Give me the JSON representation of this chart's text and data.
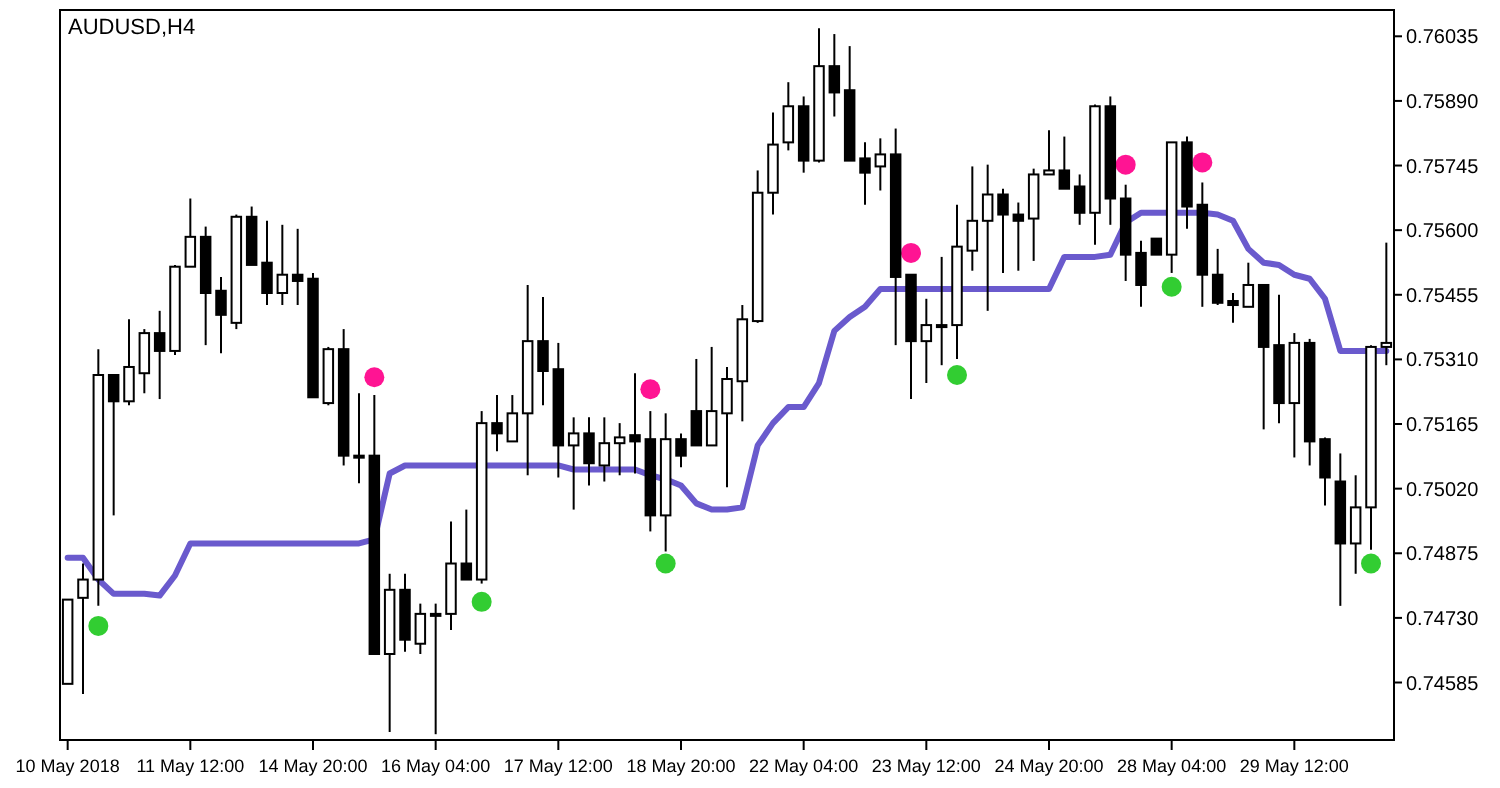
{
  "chart_data": {
    "type": "candlestick",
    "title": "AUDUSD,H4",
    "categories": [
      "10 May 2018",
      null,
      null,
      null,
      null,
      null,
      null,
      null,
      "11 May 12:00",
      null,
      null,
      null,
      null,
      null,
      null,
      null,
      "14 May 20:00",
      null,
      null,
      null,
      null,
      null,
      null,
      null,
      "16 May 04:00",
      null,
      null,
      null,
      null,
      null,
      null,
      null,
      "17 May 12:00",
      null,
      null,
      null,
      null,
      null,
      null,
      null,
      "18 May 20:00",
      null,
      null,
      null,
      null,
      null,
      null,
      null,
      "22 May 04:00",
      null,
      null,
      null,
      null,
      null,
      null,
      null,
      "23 May 12:00",
      null,
      null,
      null,
      null,
      null,
      null,
      null,
      "24 May 20:00",
      null,
      null,
      null,
      null,
      null,
      null,
      null,
      "28 May 04:00",
      null,
      null,
      null,
      null,
      null,
      null,
      null,
      "29 May 12:00",
      null,
      null,
      null,
      null,
      null,
      null
    ],
    "ohlc": [
      [
        0.74582,
        0.74771,
        0.74582,
        0.74771
      ],
      [
        0.74775,
        0.74852,
        0.74559,
        0.74816
      ],
      [
        0.74816,
        0.75333,
        0.74757,
        0.75275
      ],
      [
        0.75275,
        0.75275,
        0.7496,
        0.75216
      ],
      [
        0.75216,
        0.754,
        0.75207,
        0.75293
      ],
      [
        0.75279,
        0.75378,
        0.75234,
        0.75369
      ],
      [
        0.75369,
        0.75419,
        0.75221,
        0.75329
      ],
      [
        0.75329,
        0.75522,
        0.7532,
        0.75518
      ],
      [
        0.75518,
        0.75671,
        0.75518,
        0.75585
      ],
      [
        0.75585,
        0.75608,
        0.75342,
        0.75459
      ],
      [
        0.75464,
        0.75495,
        0.75324,
        0.7541
      ],
      [
        0.75392,
        0.75635,
        0.75378,
        0.7563
      ],
      [
        0.7563,
        0.75653,
        0.75522,
        0.75522
      ],
      [
        0.75527,
        0.75621,
        0.75432,
        0.75459
      ],
      [
        0.75459,
        0.75612,
        0.75432,
        0.755
      ],
      [
        0.755,
        0.75603,
        0.75432,
        0.75486
      ],
      [
        0.75491,
        0.75504,
        0.75225,
        0.75225
      ],
      [
        0.75212,
        0.75338,
        0.75207,
        0.75333
      ],
      [
        0.75333,
        0.75378,
        0.75072,
        0.75094
      ],
      [
        0.75094,
        0.75234,
        0.75032,
        0.75094
      ],
      [
        0.75094,
        0.7523,
        0.74649,
        0.74649
      ],
      [
        0.74649,
        0.74829,
        0.74474,
        0.74793
      ],
      [
        0.74793,
        0.74829,
        0.74654,
        0.74681
      ],
      [
        0.74672,
        0.74762,
        0.74649,
        0.74739
      ],
      [
        0.74739,
        0.74762,
        0.74469,
        0.74739
      ],
      [
        0.74739,
        0.74946,
        0.74703,
        0.74852
      ],
      [
        0.74852,
        0.74973,
        0.74816,
        0.74816
      ],
      [
        0.74816,
        0.75194,
        0.74807,
        0.75167
      ],
      [
        0.75167,
        0.7523,
        0.75104,
        0.75144
      ],
      [
        0.75126,
        0.7523,
        0.75126,
        0.75189
      ],
      [
        0.75189,
        0.75477,
        0.7505,
        0.75351
      ],
      [
        0.75351,
        0.7545,
        0.75207,
        0.75284
      ],
      [
        0.75288,
        0.75347,
        0.75045,
        0.75117
      ],
      [
        0.75117,
        0.7518,
        0.74973,
        0.75144
      ],
      [
        0.75144,
        0.7518,
        0.75027,
        0.75077
      ],
      [
        0.75072,
        0.7518,
        0.75036,
        0.75122
      ],
      [
        0.75122,
        0.75167,
        0.7505,
        0.75135
      ],
      [
        0.7514,
        0.75279,
        0.75054,
        0.75126
      ],
      [
        0.75131,
        0.75194,
        0.74924,
        0.7496
      ],
      [
        0.7496,
        0.75189,
        0.74879,
        0.75131
      ],
      [
        0.75131,
        0.75144,
        0.75068,
        0.75094
      ],
      [
        0.75194,
        0.75311,
        0.75117,
        0.75117
      ],
      [
        0.75117,
        0.75338,
        0.75117,
        0.75194
      ],
      [
        0.75189,
        0.75293,
        0.75023,
        0.75266
      ],
      [
        0.75261,
        0.75432,
        0.75171,
        0.754
      ],
      [
        0.75396,
        0.75734,
        0.75392,
        0.75684
      ],
      [
        0.75684,
        0.75864,
        0.75635,
        0.75792
      ],
      [
        0.75797,
        0.75932,
        0.75779,
        0.75878
      ],
      [
        0.75878,
        0.759,
        0.75729,
        0.75756
      ],
      [
        0.75756,
        0.76053,
        0.75752,
        0.75968
      ],
      [
        0.75968,
        0.7604,
        0.75855,
        0.75909
      ],
      [
        0.75914,
        0.76013,
        0.75756,
        0.75756
      ],
      [
        0.75761,
        0.75797,
        0.75657,
        0.75729
      ],
      [
        0.75743,
        0.75806,
        0.75689,
        0.7577
      ],
      [
        0.7577,
        0.75828,
        0.75342,
        0.75495
      ],
      [
        0.755,
        0.755,
        0.75221,
        0.75351
      ],
      [
        0.75351,
        0.75446,
        0.75257,
        0.75387
      ],
      [
        0.75387,
        0.7554,
        0.75297,
        0.75387
      ],
      [
        0.75387,
        0.75657,
        0.75311,
        0.75563
      ],
      [
        0.75554,
        0.75743,
        0.75509,
        0.75621
      ],
      [
        0.75621,
        0.75747,
        0.75419,
        0.7568
      ],
      [
        0.7568,
        0.75693,
        0.75504,
        0.75635
      ],
      [
        0.75635,
        0.75662,
        0.75509,
        0.75621
      ],
      [
        0.75626,
        0.75738,
        0.75531,
        0.75725
      ],
      [
        0.75725,
        0.75824,
        0.75725,
        0.75734
      ],
      [
        0.75734,
        0.7581,
        0.75693,
        0.75693
      ],
      [
        0.75698,
        0.75725,
        0.75612,
        0.75639
      ],
      [
        0.75639,
        0.75882,
        0.75567,
        0.75878
      ],
      [
        0.75878,
        0.759,
        0.75612,
        0.75671
      ],
      [
        0.75671,
        0.75702,
        0.75486,
        0.75545
      ],
      [
        0.75549,
        0.75576,
        0.75428,
        0.75477
      ],
      [
        0.75581,
        0.75581,
        0.75545,
        0.75545
      ],
      [
        0.75545,
        0.75797,
        0.75504,
        0.75797
      ],
      [
        0.75797,
        0.7581,
        0.75603,
        0.75653
      ],
      [
        0.75657,
        0.75707,
        0.75428,
        0.755
      ],
      [
        0.755,
        0.75558,
        0.75432,
        0.75437
      ],
      [
        0.75441,
        0.75459,
        0.75392,
        0.75432
      ],
      [
        0.75428,
        0.75527,
        0.75428,
        0.75477
      ],
      [
        0.75477,
        0.75477,
        0.75153,
        0.75338
      ],
      [
        0.75342,
        0.75455,
        0.75167,
        0.75212
      ],
      [
        0.75212,
        0.75369,
        0.7509,
        0.75347
      ],
      [
        0.75347,
        0.75356,
        0.75072,
        0.75126
      ],
      [
        0.75131,
        0.75135,
        0.74982,
        0.75045
      ],
      [
        0.75036,
        0.75099,
        0.74757,
        0.74897
      ],
      [
        0.74897,
        0.7505,
        0.74829,
        0.74978
      ],
      [
        0.74978,
        0.75342,
        0.74883,
        0.75338
      ],
      [
        0.75338,
        0.75572,
        0.75297,
        0.75347
      ]
    ],
    "series": [
      {
        "type": "line",
        "color": "#6a5acd",
        "marker": "none",
        "values": [
          0.74865,
          0.74865,
          0.74816,
          0.74784,
          0.74784,
          0.74784,
          0.7478,
          0.74825,
          0.74897,
          0.74897,
          0.74897,
          0.74897,
          0.74897,
          0.74897,
          0.74897,
          0.74897,
          0.74897,
          0.74897,
          0.74897,
          0.74897,
          0.74906,
          0.75054,
          0.75072,
          0.75072,
          0.75072,
          0.75072,
          0.75072,
          0.75072,
          0.75072,
          0.75072,
          0.75072,
          0.75072,
          0.75072,
          0.75063,
          0.75063,
          0.75063,
          0.75063,
          0.75063,
          0.7505,
          0.75041,
          0.75027,
          0.74987,
          0.74973,
          0.74973,
          0.74978,
          0.75117,
          0.75167,
          0.75203,
          0.75203,
          0.75257,
          0.75374,
          0.75405,
          0.75428,
          0.75468,
          0.75468,
          0.75468,
          0.75468,
          0.75468,
          0.75468,
          0.75468,
          0.75468,
          0.75468,
          0.75468,
          0.75468,
          0.75468,
          0.7554,
          0.7554,
          0.7554,
          0.75545,
          0.75617,
          0.75639,
          0.75639,
          0.75639,
          0.75639,
          0.75639,
          0.75635,
          0.75621,
          0.75558,
          0.75527,
          0.75522,
          0.755,
          0.75491,
          0.75446,
          0.75329,
          0.75329,
          0.75329,
          0.75329
        ]
      },
      {
        "type": "scatter",
        "color": "#ff1493",
        "marker": "circle",
        "values": [
          null,
          null,
          null,
          null,
          null,
          null,
          null,
          null,
          null,
          null,
          null,
          null,
          null,
          null,
          null,
          null,
          null,
          null,
          null,
          null,
          0.7527,
          null,
          null,
          null,
          null,
          null,
          null,
          null,
          null,
          null,
          null,
          null,
          null,
          null,
          null,
          null,
          null,
          null,
          0.75243,
          null,
          null,
          null,
          null,
          null,
          null,
          null,
          null,
          null,
          null,
          null,
          null,
          null,
          null,
          null,
          null,
          0.75549,
          null,
          null,
          null,
          null,
          null,
          null,
          null,
          null,
          null,
          null,
          null,
          null,
          null,
          0.75747,
          null,
          null,
          null,
          null,
          0.75752,
          null,
          null,
          null,
          null,
          null,
          null,
          null,
          null,
          null,
          null,
          null,
          null
        ]
      },
      {
        "type": "scatter",
        "color": "#32cd32",
        "marker": "circle",
        "values": [
          null,
          null,
          0.74712,
          null,
          null,
          null,
          null,
          null,
          null,
          null,
          null,
          null,
          null,
          null,
          null,
          null,
          null,
          null,
          null,
          null,
          null,
          null,
          null,
          null,
          null,
          null,
          null,
          0.74766,
          null,
          null,
          null,
          null,
          null,
          null,
          null,
          null,
          null,
          null,
          null,
          0.74852,
          null,
          null,
          null,
          null,
          null,
          null,
          null,
          null,
          null,
          null,
          null,
          null,
          null,
          null,
          null,
          null,
          null,
          null,
          0.75275,
          null,
          null,
          null,
          null,
          null,
          null,
          null,
          null,
          null,
          null,
          null,
          null,
          null,
          0.75473,
          null,
          null,
          null,
          null,
          null,
          null,
          null,
          null,
          null,
          null,
          null,
          null,
          0.74852,
          null
        ]
      }
    ],
    "ylim": [
      0.74456,
      0.76094
    ],
    "yticks": [
      0.74585,
      {
        "value": 0.7473,
        "label": "0.74730"
      },
      0.74875,
      {
        "value": 0.7502,
        "label": "0.75020"
      },
      0.75165,
      {
        "value": 0.7531,
        "label": "0.75310"
      },
      0.75455,
      {
        "value": 0.756,
        "label": "0.75600"
      },
      0.75745,
      {
        "value": 0.7589,
        "label": "0.75890"
      },
      0.76035
    ]
  }
}
